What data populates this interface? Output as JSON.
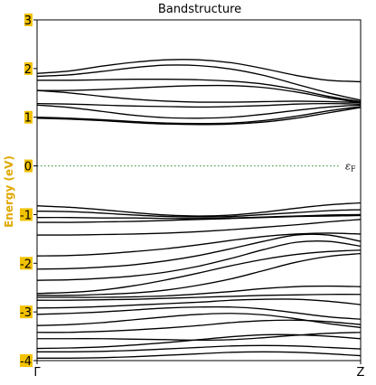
{
  "chart_data": {
    "type": "line",
    "title": "Bandstructure",
    "ylabel": "Energy (eV)",
    "xlabel": "",
    "ylim": [
      -4,
      3
    ],
    "xlim": [
      0,
      1
    ],
    "y_ticks": [
      "3",
      "2",
      "1",
      "0",
      "-1",
      "-2",
      "-3",
      "-4"
    ],
    "x_ticks": [
      {
        "x": 0,
        "label": "Γ"
      },
      {
        "x": 1,
        "label": "Z"
      }
    ],
    "fermi_level": 0,
    "fermi_label": "ε",
    "fermi_label_sub": "F",
    "grid": false,
    "colors": {
      "bands": "#000000",
      "fermi": "#2a8a2a",
      "tick_highlight": "#f2c200",
      "ylabel": "#e0a800"
    },
    "bands": [
      [
        [
          0,
          1.9
        ],
        [
          0.1,
          1.95
        ],
        [
          0.2,
          2.05
        ],
        [
          0.3,
          2.13
        ],
        [
          0.4,
          2.18
        ],
        [
          0.5,
          2.18
        ],
        [
          0.6,
          2.12
        ],
        [
          0.7,
          2.0
        ],
        [
          0.8,
          1.86
        ],
        [
          0.9,
          1.76
        ],
        [
          1,
          1.73
        ]
      ],
      [
        [
          0,
          1.84
        ],
        [
          0.1,
          1.87
        ],
        [
          0.2,
          1.94
        ],
        [
          0.3,
          2.02
        ],
        [
          0.4,
          2.07
        ],
        [
          0.5,
          2.06
        ],
        [
          0.6,
          1.99
        ],
        [
          0.7,
          1.86
        ],
        [
          0.8,
          1.68
        ],
        [
          0.9,
          1.5
        ],
        [
          1,
          1.35
        ]
      ],
      [
        [
          0,
          1.76
        ],
        [
          0.1,
          1.76
        ],
        [
          0.2,
          1.77
        ],
        [
          0.3,
          1.78
        ],
        [
          0.4,
          1.78
        ],
        [
          0.5,
          1.77
        ],
        [
          0.6,
          1.74
        ],
        [
          0.7,
          1.68
        ],
        [
          0.8,
          1.57
        ],
        [
          0.9,
          1.43
        ],
        [
          1,
          1.32
        ]
      ],
      [
        [
          0,
          1.55
        ],
        [
          0.1,
          1.55
        ],
        [
          0.2,
          1.57
        ],
        [
          0.3,
          1.6
        ],
        [
          0.4,
          1.63
        ],
        [
          0.5,
          1.65
        ],
        [
          0.6,
          1.65
        ],
        [
          0.7,
          1.61
        ],
        [
          0.8,
          1.52
        ],
        [
          0.9,
          1.4
        ],
        [
          1,
          1.3
        ]
      ],
      [
        [
          0,
          1.55
        ],
        [
          0.1,
          1.5
        ],
        [
          0.2,
          1.43
        ],
        [
          0.3,
          1.37
        ],
        [
          0.4,
          1.33
        ],
        [
          0.5,
          1.31
        ],
        [
          0.6,
          1.31
        ],
        [
          0.7,
          1.32
        ],
        [
          0.8,
          1.33
        ],
        [
          0.9,
          1.32
        ],
        [
          1,
          1.3
        ]
      ],
      [
        [
          0,
          1.28
        ],
        [
          0.1,
          1.27
        ],
        [
          0.2,
          1.25
        ],
        [
          0.3,
          1.23
        ],
        [
          0.4,
          1.22
        ],
        [
          0.5,
          1.21
        ],
        [
          0.6,
          1.22
        ],
        [
          0.7,
          1.24
        ],
        [
          0.8,
          1.27
        ],
        [
          0.9,
          1.28
        ],
        [
          1,
          1.27
        ]
      ],
      [
        [
          0,
          1.25
        ],
        [
          0.1,
          1.2
        ],
        [
          0.2,
          1.12
        ],
        [
          0.3,
          1.04
        ],
        [
          0.4,
          0.99
        ],
        [
          0.5,
          0.98
        ],
        [
          0.6,
          1.0
        ],
        [
          0.7,
          1.06
        ],
        [
          0.8,
          1.14
        ],
        [
          0.9,
          1.21
        ],
        [
          1,
          1.25
        ]
      ],
      [
        [
          0,
          1.0
        ],
        [
          0.1,
          0.98
        ],
        [
          0.2,
          0.95
        ],
        [
          0.3,
          0.91
        ],
        [
          0.4,
          0.88
        ],
        [
          0.5,
          0.87
        ],
        [
          0.6,
          0.88
        ],
        [
          0.7,
          0.93
        ],
        [
          0.8,
          1.02
        ],
        [
          0.9,
          1.13
        ],
        [
          1,
          1.22
        ]
      ],
      [
        [
          0,
          0.98
        ],
        [
          0.1,
          0.96
        ],
        [
          0.2,
          0.93
        ],
        [
          0.3,
          0.89
        ],
        [
          0.4,
          0.86
        ],
        [
          0.5,
          0.85
        ],
        [
          0.6,
          0.86
        ],
        [
          0.7,
          0.9
        ],
        [
          0.8,
          0.98
        ],
        [
          0.9,
          1.09
        ],
        [
          1,
          1.2
        ]
      ],
      [
        [
          0,
          -0.82
        ],
        [
          0.1,
          -0.85
        ],
        [
          0.2,
          -0.9
        ],
        [
          0.3,
          -0.96
        ],
        [
          0.4,
          -1.01
        ],
        [
          0.5,
          -1.03
        ],
        [
          0.6,
          -1.01
        ],
        [
          0.7,
          -0.95
        ],
        [
          0.8,
          -0.87
        ],
        [
          0.9,
          -0.8
        ],
        [
          1,
          -0.76
        ]
      ],
      [
        [
          0,
          -0.93
        ],
        [
          0.1,
          -0.94
        ],
        [
          0.2,
          -0.97
        ],
        [
          0.3,
          -1.01
        ],
        [
          0.4,
          -1.04
        ],
        [
          0.5,
          -1.05
        ],
        [
          0.6,
          -1.04
        ],
        [
          0.7,
          -1.0
        ],
        [
          0.8,
          -0.96
        ],
        [
          0.9,
          -0.92
        ],
        [
          1,
          -0.9
        ]
      ],
      [
        [
          0,
          -1.06
        ],
        [
          0.1,
          -1.06
        ],
        [
          0.2,
          -1.07
        ],
        [
          0.3,
          -1.07
        ],
        [
          0.4,
          -1.08
        ],
        [
          0.5,
          -1.08
        ],
        [
          0.6,
          -1.07
        ],
        [
          0.7,
          -1.05
        ],
        [
          0.8,
          -1.03
        ],
        [
          0.9,
          -1.01
        ],
        [
          1,
          -1.0
        ]
      ],
      [
        [
          0,
          -1.16
        ],
        [
          0.1,
          -1.16
        ],
        [
          0.2,
          -1.15
        ],
        [
          0.3,
          -1.14
        ],
        [
          0.4,
          -1.12
        ],
        [
          0.5,
          -1.1
        ],
        [
          0.6,
          -1.08
        ],
        [
          0.7,
          -1.06
        ],
        [
          0.8,
          -1.04
        ],
        [
          0.9,
          -1.03
        ],
        [
          1,
          -1.02
        ]
      ],
      [
        [
          0,
          -1.42
        ],
        [
          0.1,
          -1.42
        ],
        [
          0.2,
          -1.41
        ],
        [
          0.3,
          -1.4
        ],
        [
          0.4,
          -1.38
        ],
        [
          0.5,
          -1.35
        ],
        [
          0.6,
          -1.31
        ],
        [
          0.7,
          -1.26
        ],
        [
          0.8,
          -1.21
        ],
        [
          0.9,
          -1.15
        ],
        [
          1,
          -1.1
        ]
      ],
      [
        [
          0,
          -1.85
        ],
        [
          0.1,
          -1.84
        ],
        [
          0.2,
          -1.81
        ],
        [
          0.3,
          -1.76
        ],
        [
          0.4,
          -1.7
        ],
        [
          0.5,
          -1.62
        ],
        [
          0.6,
          -1.53
        ],
        [
          0.7,
          -1.45
        ],
        [
          0.8,
          -1.4
        ],
        [
          0.9,
          -1.38
        ],
        [
          1,
          -1.4
        ]
      ],
      [
        [
          0,
          -2.12
        ],
        [
          0.1,
          -2.11
        ],
        [
          0.2,
          -2.08
        ],
        [
          0.3,
          -2.03
        ],
        [
          0.4,
          -1.95
        ],
        [
          0.5,
          -1.84
        ],
        [
          0.6,
          -1.7
        ],
        [
          0.7,
          -1.55
        ],
        [
          0.8,
          -1.42
        ],
        [
          0.9,
          -1.42
        ],
        [
          1,
          -1.55
        ]
      ],
      [
        [
          0,
          -2.35
        ],
        [
          0.1,
          -2.34
        ],
        [
          0.2,
          -2.31
        ],
        [
          0.3,
          -2.26
        ],
        [
          0.4,
          -2.18
        ],
        [
          0.5,
          -2.06
        ],
        [
          0.6,
          -1.9
        ],
        [
          0.7,
          -1.72
        ],
        [
          0.8,
          -1.57
        ],
        [
          0.9,
          -1.55
        ],
        [
          1,
          -1.65
        ]
      ],
      [
        [
          0,
          -2.62
        ],
        [
          0.1,
          -2.6
        ],
        [
          0.2,
          -2.55
        ],
        [
          0.3,
          -2.46
        ],
        [
          0.4,
          -2.34
        ],
        [
          0.5,
          -2.2
        ],
        [
          0.6,
          -2.05
        ],
        [
          0.7,
          -1.92
        ],
        [
          0.8,
          -1.82
        ],
        [
          0.9,
          -1.76
        ],
        [
          1,
          -1.73
        ]
      ],
      [
        [
          0,
          -2.66
        ],
        [
          0.1,
          -2.66
        ],
        [
          0.2,
          -2.64
        ],
        [
          0.3,
          -2.61
        ],
        [
          0.4,
          -2.55
        ],
        [
          0.5,
          -2.45
        ],
        [
          0.6,
          -2.32
        ],
        [
          0.7,
          -2.15
        ],
        [
          0.8,
          -1.98
        ],
        [
          0.9,
          -1.86
        ],
        [
          1,
          -1.8
        ]
      ],
      [
        [
          0,
          -2.7
        ],
        [
          0.1,
          -2.7
        ],
        [
          0.2,
          -2.7
        ],
        [
          0.3,
          -2.69
        ],
        [
          0.4,
          -2.67
        ],
        [
          0.5,
          -2.63
        ],
        [
          0.6,
          -2.58
        ],
        [
          0.7,
          -2.52
        ],
        [
          0.8,
          -2.48
        ],
        [
          0.9,
          -2.47
        ],
        [
          1,
          -2.48
        ]
      ],
      [
        [
          0,
          -2.76
        ],
        [
          0.1,
          -2.76
        ],
        [
          0.2,
          -2.75
        ],
        [
          0.3,
          -2.74
        ],
        [
          0.4,
          -2.72
        ],
        [
          0.5,
          -2.7
        ],
        [
          0.6,
          -2.68
        ],
        [
          0.7,
          -2.66
        ],
        [
          0.8,
          -2.65
        ],
        [
          0.9,
          -2.64
        ],
        [
          1,
          -2.64
        ]
      ],
      [
        [
          0,
          -2.92
        ],
        [
          0.1,
          -2.91
        ],
        [
          0.2,
          -2.89
        ],
        [
          0.3,
          -2.86
        ],
        [
          0.4,
          -2.83
        ],
        [
          0.5,
          -2.8
        ],
        [
          0.6,
          -2.76
        ],
        [
          0.7,
          -2.74
        ],
        [
          0.8,
          -2.74
        ],
        [
          0.9,
          -2.78
        ],
        [
          1,
          -2.85
        ]
      ],
      [
        [
          0,
          -3.05
        ],
        [
          0.1,
          -3.03
        ],
        [
          0.2,
          -3.0
        ],
        [
          0.3,
          -2.96
        ],
        [
          0.4,
          -2.92
        ],
        [
          0.5,
          -2.9
        ],
        [
          0.6,
          -2.9
        ],
        [
          0.7,
          -2.94
        ],
        [
          0.8,
          -3.02
        ],
        [
          0.9,
          -3.1
        ],
        [
          1,
          -3.15
        ]
      ],
      [
        [
          0,
          -3.28
        ],
        [
          0.1,
          -3.26
        ],
        [
          0.2,
          -3.22
        ],
        [
          0.3,
          -3.16
        ],
        [
          0.4,
          -3.1
        ],
        [
          0.5,
          -3.05
        ],
        [
          0.6,
          -3.03
        ],
        [
          0.7,
          -3.06
        ],
        [
          0.8,
          -3.14
        ],
        [
          0.9,
          -3.24
        ],
        [
          1,
          -3.32
        ]
      ],
      [
        [
          0,
          -3.42
        ],
        [
          0.1,
          -3.42
        ],
        [
          0.2,
          -3.4
        ],
        [
          0.3,
          -3.37
        ],
        [
          0.4,
          -3.33
        ],
        [
          0.5,
          -3.28
        ],
        [
          0.6,
          -3.22
        ],
        [
          0.7,
          -3.18
        ],
        [
          0.8,
          -3.17
        ],
        [
          0.9,
          -3.2
        ],
        [
          1,
          -3.26
        ]
      ],
      [
        [
          0,
          -3.55
        ],
        [
          0.1,
          -3.55
        ],
        [
          0.2,
          -3.55
        ],
        [
          0.3,
          -3.56
        ],
        [
          0.4,
          -3.57
        ],
        [
          0.5,
          -3.58
        ],
        [
          0.6,
          -3.57
        ],
        [
          0.7,
          -3.53
        ],
        [
          0.8,
          -3.48
        ],
        [
          0.9,
          -3.44
        ],
        [
          1,
          -3.42
        ]
      ],
      [
        [
          0,
          -3.75
        ],
        [
          0.1,
          -3.74
        ],
        [
          0.2,
          -3.72
        ],
        [
          0.3,
          -3.68
        ],
        [
          0.4,
          -3.63
        ],
        [
          0.5,
          -3.57
        ],
        [
          0.6,
          -3.51
        ],
        [
          0.7,
          -3.47
        ],
        [
          0.8,
          -3.47
        ],
        [
          0.9,
          -3.5
        ],
        [
          1,
          -3.55
        ]
      ],
      [
        [
          0,
          -3.82
        ],
        [
          0.1,
          -3.82
        ],
        [
          0.2,
          -3.81
        ],
        [
          0.3,
          -3.79
        ],
        [
          0.4,
          -3.76
        ],
        [
          0.5,
          -3.73
        ],
        [
          0.6,
          -3.7
        ],
        [
          0.7,
          -3.69
        ],
        [
          0.8,
          -3.7
        ],
        [
          0.9,
          -3.73
        ],
        [
          1,
          -3.76
        ]
      ],
      [
        [
          0,
          -3.95
        ],
        [
          0.1,
          -3.95
        ],
        [
          0.2,
          -3.94
        ],
        [
          0.3,
          -3.92
        ],
        [
          0.4,
          -3.89
        ],
        [
          0.5,
          -3.86
        ],
        [
          0.6,
          -3.83
        ],
        [
          0.7,
          -3.82
        ],
        [
          0.8,
          -3.83
        ],
        [
          0.9,
          -3.86
        ],
        [
          1,
          -3.9
        ]
      ]
    ]
  }
}
